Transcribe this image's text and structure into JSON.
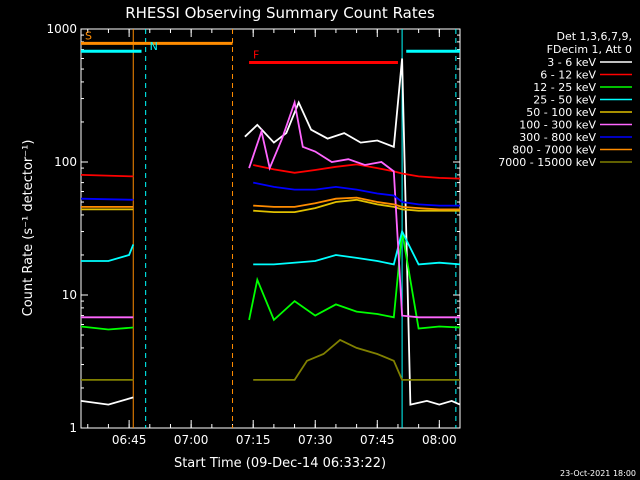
{
  "chart_data": {
    "type": "line",
    "title": "RHESSI Observing Summary Count Rates",
    "xlabel": "Start Time (09-Dec-14 06:33:22)",
    "ylabel": "Count Rate (s⁻¹ detector⁻¹)",
    "y_scale": "log",
    "ylim": [
      1,
      1000
    ],
    "y_ticks": [
      {
        "value": 1,
        "label": "1"
      },
      {
        "value": 10,
        "label": "10"
      },
      {
        "value": 100,
        "label": "100"
      },
      {
        "value": 1000,
        "label": "1000"
      }
    ],
    "xlim": [
      "06:33:22",
      "08:05:00"
    ],
    "x_ticks": [
      {
        "value": "06:45",
        "label": "06:45"
      },
      {
        "value": "07:00",
        "label": "07:00"
      },
      {
        "value": "07:15",
        "label": "07:15"
      },
      {
        "value": "07:30",
        "label": "07:30"
      },
      {
        "value": "07:45",
        "label": "07:45"
      },
      {
        "value": "08:00",
        "label": "08:00"
      }
    ],
    "legend": {
      "header": [
        "Det 1,3,6,7,9,",
        "FDecim 1, Att 0"
      ],
      "placement": "right"
    },
    "footer": "23-Oct-2021 18:00",
    "grid": false,
    "series": [
      {
        "name": "3 - 6 keV",
        "color": "#ffffff",
        "x": [
          "06:33:22",
          "06:40",
          "06:46",
          "07:11",
          "07:13",
          "07:16",
          "07:20",
          "07:23",
          "07:26",
          "07:29",
          "07:33",
          "07:37",
          "07:41",
          "07:45",
          "07:49",
          "07:51",
          "07:53",
          "07:57",
          "08:00",
          "08:03",
          "08:05"
        ],
        "y": [
          1.6,
          1.5,
          1.7,
          null,
          155,
          190,
          140,
          165,
          280,
          175,
          150,
          165,
          140,
          145,
          130,
          600,
          1.5,
          1.6,
          1.5,
          1.6,
          1.5
        ]
      },
      {
        "name": "6 - 12 keV",
        "color": "#ff0000",
        "x": [
          "06:33:22",
          "06:46",
          "07:11",
          "07:15",
          "07:20",
          "07:25",
          "07:30",
          "07:35",
          "07:40",
          "07:45",
          "07:49",
          "07:51",
          "07:55",
          "08:00",
          "08:05"
        ],
        "y": [
          80,
          78,
          null,
          95,
          88,
          83,
          87,
          92,
          96,
          90,
          85,
          82,
          78,
          76,
          75
        ]
      },
      {
        "name": "12 - 25 keV",
        "color": "#00ff00",
        "x": [
          "06:33:22",
          "06:40",
          "06:46",
          "07:11",
          "07:14",
          "07:16",
          "07:20",
          "07:25",
          "07:30",
          "07:35",
          "07:40",
          "07:45",
          "07:49",
          "07:51",
          "07:55",
          "08:00",
          "08:05"
        ],
        "y": [
          5.8,
          5.5,
          5.7,
          null,
          6.5,
          13,
          6.5,
          9,
          7,
          8.5,
          7.5,
          7.2,
          6.8,
          30,
          5.6,
          5.8,
          5.7
        ]
      },
      {
        "name": "25 - 50 keV",
        "color": "#00ffff",
        "x": [
          "06:33:22",
          "06:40",
          "06:45",
          "06:46",
          "07:11",
          "07:15",
          "07:20",
          "07:30",
          "07:35",
          "07:40",
          "07:45",
          "07:49",
          "07:51",
          "07:55",
          "08:00",
          "08:05"
        ],
        "y": [
          18,
          18,
          20,
          24,
          null,
          17,
          17,
          18,
          20,
          19,
          18,
          17,
          30,
          17,
          17.5,
          17
        ]
      },
      {
        "name": "50 - 100 keV",
        "color": "#e0c000",
        "x": [
          "06:33:22",
          "06:46",
          "07:11",
          "07:15",
          "07:20",
          "07:25",
          "07:30",
          "07:35",
          "07:40",
          "07:45",
          "07:49",
          "07:51",
          "07:55",
          "08:00",
          "08:05"
        ],
        "y": [
          44,
          44,
          null,
          43,
          42,
          42,
          45,
          50,
          52,
          48,
          46,
          44,
          43,
          43,
          43
        ]
      },
      {
        "name": "100 - 300 keV",
        "color": "#ff66ff",
        "x": [
          "06:33:22",
          "06:46",
          "07:11",
          "07:14",
          "07:17",
          "07:19",
          "07:22",
          "07:25",
          "07:27",
          "07:30",
          "07:34",
          "07:38",
          "07:42",
          "07:46",
          "07:49",
          "07:51",
          "07:55",
          "08:00",
          "08:05"
        ],
        "y": [
          6.8,
          6.8,
          null,
          90,
          170,
          90,
          150,
          280,
          130,
          120,
          100,
          105,
          95,
          100,
          85,
          7,
          6.8,
          6.8,
          6.8
        ]
      },
      {
        "name": "300 - 800 keV",
        "color": "#0000ff",
        "x": [
          "06:33:22",
          "06:46",
          "07:11",
          "07:15",
          "07:20",
          "07:25",
          "07:30",
          "07:35",
          "07:40",
          "07:45",
          "07:49",
          "07:51",
          "07:55",
          "08:00",
          "08:05"
        ],
        "y": [
          53,
          52,
          null,
          70,
          65,
          62,
          62,
          65,
          62,
          58,
          56,
          50,
          48,
          47,
          47
        ]
      },
      {
        "name": "800 - 7000 keV",
        "color": "#ff8c00",
        "x": [
          "06:33:22",
          "06:46",
          "07:11",
          "07:15",
          "07:20",
          "07:25",
          "07:30",
          "07:35",
          "07:40",
          "07:45",
          "07:49",
          "07:51",
          "07:55",
          "08:00",
          "08:05"
        ],
        "y": [
          46,
          46,
          null,
          47,
          46,
          46,
          49,
          53,
          54,
          50,
          48,
          46,
          45,
          44,
          44
        ]
      },
      {
        "name": "7000 - 15000 keV",
        "color": "#808000",
        "x": [
          "06:33:22",
          "06:46",
          "07:11",
          "07:15",
          "07:25",
          "07:28",
          "07:32",
          "07:36",
          "07:40",
          "07:45",
          "07:49",
          "07:51",
          "07:55",
          "08:00",
          "08:05"
        ],
        "y": [
          2.3,
          2.3,
          null,
          2.3,
          2.3,
          3.2,
          3.6,
          4.6,
          4.0,
          3.6,
          3.2,
          2.3,
          2.3,
          2.3,
          2.3
        ]
      }
    ],
    "intervals": [
      {
        "label": "S",
        "color": "#ff8c00",
        "start": "06:33:22",
        "end": "07:10",
        "y_level": 780
      },
      {
        "label": "N",
        "color": "#00ffff",
        "start": "06:49",
        "end": "06:49",
        "y_level": 650
      },
      {
        "label": "F",
        "color": "#ff0000",
        "start": "07:14",
        "end": "07:50",
        "y_level": 560
      },
      {
        "label": "",
        "color": "#00ffff",
        "start": "06:33:22",
        "end": "06:48",
        "y_level": 680
      },
      {
        "label": "",
        "color": "#00ffff",
        "start": "07:52",
        "end": "08:05",
        "y_level": 680
      }
    ],
    "markers": [
      {
        "time": "06:46",
        "color": "#ff8c00",
        "style": "solid"
      },
      {
        "time": "06:49",
        "color": "#00ffff",
        "style": "dashed"
      },
      {
        "time": "07:10",
        "color": "#ff8c00",
        "style": "dashed"
      },
      {
        "time": "07:51",
        "color": "#00ffff",
        "style": "solid"
      },
      {
        "time": "08:04",
        "color": "#00ffff",
        "style": "dashed"
      }
    ]
  }
}
